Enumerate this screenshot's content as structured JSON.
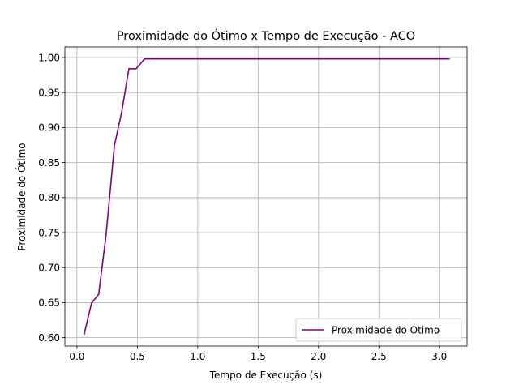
{
  "chart_data": {
    "type": "line",
    "title": "Proximidade do Ótimo x Tempo de Execução - ACO",
    "xlabel": "Tempo de Execução (s)",
    "ylabel": "Proximidade do Ótimo",
    "xlim": [
      -0.1,
      3.23
    ],
    "ylim": [
      0.588,
      1.015
    ],
    "xticks": [
      0.0,
      0.5,
      1.0,
      1.5,
      2.0,
      2.5,
      3.0
    ],
    "xtick_labels": [
      "0.0",
      "0.5",
      "1.0",
      "1.5",
      "2.0",
      "2.5",
      "3.0"
    ],
    "yticks": [
      0.6,
      0.65,
      0.7,
      0.75,
      0.8,
      0.85,
      0.9,
      0.95,
      1.0
    ],
    "ytick_labels": [
      "0.60",
      "0.65",
      "0.70",
      "0.75",
      "0.80",
      "0.85",
      "0.90",
      "0.95",
      "1.00"
    ],
    "grid": true,
    "legend_position": "lower-right",
    "series": [
      {
        "name": "Proximidade do Ótimo",
        "color": "#800080",
        "x": [
          0.06,
          0.12,
          0.18,
          0.24,
          0.31,
          0.37,
          0.43,
          0.49,
          0.56,
          0.62,
          3.08
        ],
        "y": [
          0.605,
          0.649,
          0.662,
          0.745,
          0.874,
          0.922,
          0.984,
          0.984,
          0.998,
          0.998,
          0.998
        ]
      }
    ]
  }
}
